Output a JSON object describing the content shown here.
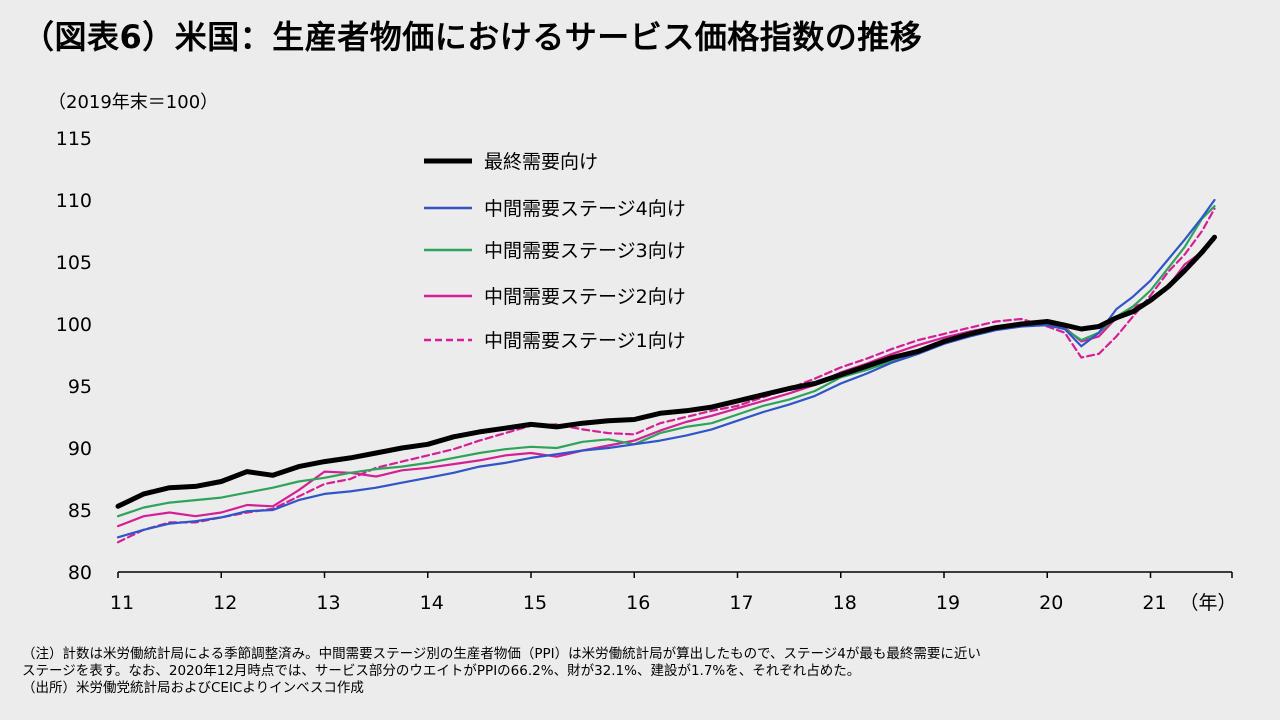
{
  "header": {
    "title": "（図表6）米国：生産者物価におけるサービス価格指数の推移"
  },
  "notes": {
    "note_line1": "（注）計数は米労働統計局による季節調整済み。中間需要ステージ別の生産者物価（PPI）は米労働統計局が算出したもので、ステージ4が最も最終需要に近い",
    "note_line2": "ステージを表す。なお、2020年12月時点では、サービス部分のウエイトがPPIの66.2%、財が32.1%、建設が1.7%を、それぞれ占めた。",
    "source": "（出所）米労働党統計局およびCEICよりインベスコ作成"
  },
  "chart_data": {
    "type": "line",
    "title": "米国：生産者物価におけるサービス価格指数の推移",
    "ylabel": "（2019年末＝100）",
    "xlabel": "（年）",
    "ylim": [
      80,
      115
    ],
    "yticks": [
      80,
      85,
      90,
      95,
      100,
      105,
      110,
      115
    ],
    "xlim": [
      2011.0,
      2021.65
    ],
    "xticks": [
      {
        "value": 2011,
        "label": "11"
      },
      {
        "value": 2012,
        "label": "12"
      },
      {
        "value": 2013,
        "label": "13"
      },
      {
        "value": 2014,
        "label": "14"
      },
      {
        "value": 2015,
        "label": "15"
      },
      {
        "value": 2016,
        "label": "16"
      },
      {
        "value": 2017,
        "label": "17"
      },
      {
        "value": 2018,
        "label": "18"
      },
      {
        "value": 2019,
        "label": "19"
      },
      {
        "value": 2020,
        "label": "20"
      },
      {
        "value": 2021,
        "label": "21"
      }
    ],
    "legend_position": "top-center",
    "series": [
      {
        "name": "最終需要向け",
        "color": "#000000",
        "style": "solid-thick",
        "points": [
          [
            2011.0,
            85.3
          ],
          [
            2011.25,
            86.3
          ],
          [
            2011.5,
            86.8
          ],
          [
            2011.75,
            86.9
          ],
          [
            2012.0,
            87.3
          ],
          [
            2012.25,
            88.1
          ],
          [
            2012.5,
            87.8
          ],
          [
            2012.75,
            88.5
          ],
          [
            2013.0,
            88.9
          ],
          [
            2013.25,
            89.2
          ],
          [
            2013.5,
            89.6
          ],
          [
            2013.75,
            90.0
          ],
          [
            2014.0,
            90.3
          ],
          [
            2014.25,
            90.9
          ],
          [
            2014.5,
            91.3
          ],
          [
            2014.75,
            91.6
          ],
          [
            2015.0,
            91.9
          ],
          [
            2015.25,
            91.7
          ],
          [
            2015.5,
            92.0
          ],
          [
            2015.75,
            92.2
          ],
          [
            2016.0,
            92.3
          ],
          [
            2016.25,
            92.8
          ],
          [
            2016.5,
            93.0
          ],
          [
            2016.75,
            93.3
          ],
          [
            2017.0,
            93.8
          ],
          [
            2017.25,
            94.3
          ],
          [
            2017.5,
            94.8
          ],
          [
            2017.75,
            95.2
          ],
          [
            2018.0,
            95.9
          ],
          [
            2018.25,
            96.6
          ],
          [
            2018.5,
            97.3
          ],
          [
            2018.75,
            97.8
          ],
          [
            2019.0,
            98.6
          ],
          [
            2019.25,
            99.2
          ],
          [
            2019.5,
            99.7
          ],
          [
            2019.75,
            100.0
          ],
          [
            2020.0,
            100.2
          ],
          [
            2020.17,
            99.9
          ],
          [
            2020.33,
            99.6
          ],
          [
            2020.5,
            99.8
          ],
          [
            2020.67,
            100.5
          ],
          [
            2020.83,
            101.0
          ],
          [
            2021.0,
            101.9
          ],
          [
            2021.17,
            103.0
          ],
          [
            2021.33,
            104.3
          ],
          [
            2021.5,
            105.8
          ],
          [
            2021.62,
            107.0
          ]
        ]
      },
      {
        "name": "中間需要ステージ4向け",
        "color": "#2f55c8",
        "style": "solid",
        "points": [
          [
            2011.0,
            82.8
          ],
          [
            2011.25,
            83.4
          ],
          [
            2011.5,
            83.9
          ],
          [
            2011.75,
            84.1
          ],
          [
            2012.0,
            84.4
          ],
          [
            2012.25,
            84.9
          ],
          [
            2012.5,
            85.0
          ],
          [
            2012.75,
            85.8
          ],
          [
            2013.0,
            86.3
          ],
          [
            2013.25,
            86.5
          ],
          [
            2013.5,
            86.8
          ],
          [
            2013.75,
            87.2
          ],
          [
            2014.0,
            87.6
          ],
          [
            2014.25,
            88.0
          ],
          [
            2014.5,
            88.5
          ],
          [
            2014.75,
            88.8
          ],
          [
            2015.0,
            89.2
          ],
          [
            2015.25,
            89.5
          ],
          [
            2015.5,
            89.8
          ],
          [
            2015.75,
            90.0
          ],
          [
            2016.0,
            90.3
          ],
          [
            2016.25,
            90.6
          ],
          [
            2016.5,
            91.0
          ],
          [
            2016.75,
            91.5
          ],
          [
            2017.0,
            92.2
          ],
          [
            2017.25,
            92.9
          ],
          [
            2017.5,
            93.5
          ],
          [
            2017.75,
            94.2
          ],
          [
            2018.0,
            95.2
          ],
          [
            2018.25,
            96.0
          ],
          [
            2018.5,
            96.9
          ],
          [
            2018.75,
            97.6
          ],
          [
            2019.0,
            98.4
          ],
          [
            2019.25,
            99.0
          ],
          [
            2019.5,
            99.5
          ],
          [
            2019.75,
            99.8
          ],
          [
            2020.0,
            99.9
          ],
          [
            2020.17,
            99.6
          ],
          [
            2020.33,
            98.2
          ],
          [
            2020.5,
            99.3
          ],
          [
            2020.67,
            101.2
          ],
          [
            2020.83,
            102.2
          ],
          [
            2021.0,
            103.5
          ],
          [
            2021.17,
            105.2
          ],
          [
            2021.33,
            106.8
          ],
          [
            2021.5,
            108.6
          ],
          [
            2021.62,
            110.0
          ]
        ]
      },
      {
        "name": "中間需要ステージ3向け",
        "color": "#2fa35a",
        "style": "solid",
        "points": [
          [
            2011.0,
            84.5
          ],
          [
            2011.25,
            85.2
          ],
          [
            2011.5,
            85.6
          ],
          [
            2011.75,
            85.8
          ],
          [
            2012.0,
            86.0
          ],
          [
            2012.25,
            86.4
          ],
          [
            2012.5,
            86.8
          ],
          [
            2012.75,
            87.3
          ],
          [
            2013.0,
            87.6
          ],
          [
            2013.25,
            88.0
          ],
          [
            2013.5,
            88.3
          ],
          [
            2013.75,
            88.5
          ],
          [
            2014.0,
            88.8
          ],
          [
            2014.25,
            89.2
          ],
          [
            2014.5,
            89.6
          ],
          [
            2014.75,
            89.9
          ],
          [
            2015.0,
            90.1
          ],
          [
            2015.25,
            90.0
          ],
          [
            2015.5,
            90.5
          ],
          [
            2015.75,
            90.7
          ],
          [
            2016.0,
            90.3
          ],
          [
            2016.25,
            91.2
          ],
          [
            2016.5,
            91.7
          ],
          [
            2016.75,
            92.0
          ],
          [
            2017.0,
            92.7
          ],
          [
            2017.25,
            93.4
          ],
          [
            2017.5,
            93.9
          ],
          [
            2017.75,
            94.6
          ],
          [
            2018.0,
            95.7
          ],
          [
            2018.25,
            96.3
          ],
          [
            2018.5,
            97.0
          ],
          [
            2018.75,
            97.7
          ],
          [
            2019.0,
            98.5
          ],
          [
            2019.25,
            99.1
          ],
          [
            2019.5,
            99.6
          ],
          [
            2019.75,
            99.9
          ],
          [
            2020.0,
            99.9
          ],
          [
            2020.17,
            99.6
          ],
          [
            2020.33,
            98.7
          ],
          [
            2020.5,
            99.3
          ],
          [
            2020.67,
            100.6
          ],
          [
            2020.83,
            101.4
          ],
          [
            2021.0,
            102.7
          ],
          [
            2021.17,
            104.5
          ],
          [
            2021.33,
            106.2
          ],
          [
            2021.5,
            108.5
          ],
          [
            2021.62,
            109.5
          ]
        ]
      },
      {
        "name": "中間需要ステージ2向け",
        "color": "#d61f96",
        "style": "solid",
        "points": [
          [
            2011.0,
            83.7
          ],
          [
            2011.25,
            84.5
          ],
          [
            2011.5,
            84.8
          ],
          [
            2011.75,
            84.5
          ],
          [
            2012.0,
            84.8
          ],
          [
            2012.25,
            85.4
          ],
          [
            2012.5,
            85.3
          ],
          [
            2012.75,
            86.6
          ],
          [
            2013.0,
            88.1
          ],
          [
            2013.25,
            88.0
          ],
          [
            2013.5,
            87.7
          ],
          [
            2013.75,
            88.2
          ],
          [
            2014.0,
            88.4
          ],
          [
            2014.25,
            88.7
          ],
          [
            2014.5,
            89.0
          ],
          [
            2014.75,
            89.4
          ],
          [
            2015.0,
            89.6
          ],
          [
            2015.25,
            89.3
          ],
          [
            2015.5,
            89.8
          ],
          [
            2015.75,
            90.2
          ],
          [
            2016.0,
            90.6
          ],
          [
            2016.25,
            91.4
          ],
          [
            2016.5,
            92.1
          ],
          [
            2016.75,
            92.6
          ],
          [
            2017.0,
            93.2
          ],
          [
            2017.25,
            93.8
          ],
          [
            2017.5,
            94.4
          ],
          [
            2017.75,
            95.1
          ],
          [
            2018.0,
            96.1
          ],
          [
            2018.25,
            96.8
          ],
          [
            2018.5,
            97.6
          ],
          [
            2018.75,
            98.3
          ],
          [
            2019.0,
            98.9
          ],
          [
            2019.25,
            99.4
          ],
          [
            2019.5,
            99.8
          ],
          [
            2019.75,
            100.0
          ],
          [
            2020.0,
            99.9
          ],
          [
            2020.17,
            99.7
          ],
          [
            2020.33,
            98.6
          ],
          [
            2020.5,
            99.0
          ],
          [
            2020.67,
            100.5
          ],
          [
            2020.83,
            101.4
          ],
          [
            2021.0,
            101.8
          ],
          [
            2021.17,
            103.0
          ],
          [
            2021.33,
            104.8
          ],
          [
            2021.5,
            105.8
          ],
          [
            2021.62,
            106.8
          ]
        ]
      },
      {
        "name": "中間需要ステージ1向け",
        "color": "#d61f96",
        "style": "dashed",
        "points": [
          [
            2011.0,
            82.4
          ],
          [
            2011.25,
            83.4
          ],
          [
            2011.5,
            84.0
          ],
          [
            2011.75,
            84.0
          ],
          [
            2012.0,
            84.4
          ],
          [
            2012.25,
            84.8
          ],
          [
            2012.5,
            85.1
          ],
          [
            2012.75,
            86.1
          ],
          [
            2013.0,
            87.1
          ],
          [
            2013.25,
            87.5
          ],
          [
            2013.5,
            88.4
          ],
          [
            2013.75,
            88.9
          ],
          [
            2014.0,
            89.4
          ],
          [
            2014.25,
            89.9
          ],
          [
            2014.5,
            90.6
          ],
          [
            2014.75,
            91.2
          ],
          [
            2015.0,
            91.8
          ],
          [
            2015.25,
            91.9
          ],
          [
            2015.5,
            91.5
          ],
          [
            2015.75,
            91.2
          ],
          [
            2016.0,
            91.1
          ],
          [
            2016.25,
            92.0
          ],
          [
            2016.5,
            92.5
          ],
          [
            2016.75,
            93.0
          ],
          [
            2017.0,
            93.4
          ],
          [
            2017.25,
            94.1
          ],
          [
            2017.5,
            94.8
          ],
          [
            2017.75,
            95.6
          ],
          [
            2018.0,
            96.5
          ],
          [
            2018.25,
            97.2
          ],
          [
            2018.5,
            98.0
          ],
          [
            2018.75,
            98.7
          ],
          [
            2019.0,
            99.2
          ],
          [
            2019.25,
            99.7
          ],
          [
            2019.5,
            100.2
          ],
          [
            2019.75,
            100.4
          ],
          [
            2020.0,
            99.8
          ],
          [
            2020.17,
            99.3
          ],
          [
            2020.33,
            97.3
          ],
          [
            2020.5,
            97.6
          ],
          [
            2020.67,
            99.0
          ],
          [
            2020.83,
            100.6
          ],
          [
            2021.0,
            102.3
          ],
          [
            2021.17,
            104.2
          ],
          [
            2021.33,
            105.6
          ],
          [
            2021.5,
            107.5
          ],
          [
            2021.62,
            109.3
          ]
        ]
      }
    ]
  }
}
